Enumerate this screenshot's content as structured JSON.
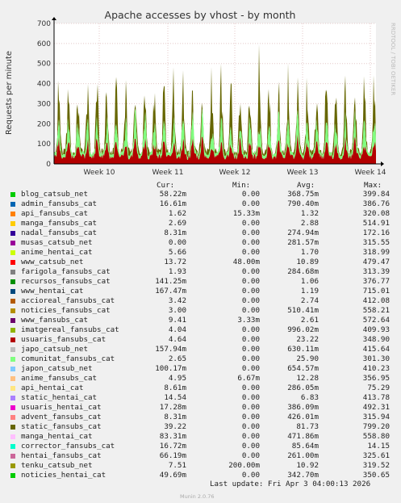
{
  "chart_data": {
    "type": "area",
    "title": "Apache accesses by vhost - by month",
    "ylabel": "Requests per minute",
    "side_label": "RRDTOOL / TOBI OETIKER",
    "ylim": [
      0,
      700
    ],
    "yticks": [
      0,
      100,
      200,
      300,
      400,
      500,
      600,
      700
    ],
    "xticks": [
      "Week 10",
      "Week 11",
      "Week 12",
      "Week 13",
      "Week 14"
    ],
    "grid": true,
    "legend_headers": [
      "Cur:",
      "Min:",
      "Avg:",
      "Max:"
    ],
    "series": [
      {
        "name": "blog_catsub_net",
        "color": "#00cc00",
        "cur": "58.22m",
        "min": "0.00",
        "avg": "368.75m",
        "max": "399.84"
      },
      {
        "name": "admin_fansubs_cat",
        "color": "#0066b3",
        "cur": "16.61m",
        "min": "0.00",
        "avg": "790.40m",
        "max": "386.76"
      },
      {
        "name": "api_fansubs_cat",
        "color": "#ff8000",
        "cur": "1.62",
        "min": "15.33m",
        "avg": "1.32",
        "max": "320.08"
      },
      {
        "name": "manga_fansubs_cat",
        "color": "#ffcc00",
        "cur": "2.69",
        "min": "0.00",
        "avg": "2.88",
        "max": "514.91"
      },
      {
        "name": "nadal_fansubs_cat",
        "color": "#330099",
        "cur": "8.31m",
        "min": "0.00",
        "avg": "274.94m",
        "max": "172.16"
      },
      {
        "name": "musas_catsub_net",
        "color": "#990099",
        "cur": "0.00",
        "min": "0.00",
        "avg": "281.57m",
        "max": "315.55"
      },
      {
        "name": "anime_hentai_cat",
        "color": "#ccff00",
        "cur": "5.66",
        "min": "0.00",
        "avg": "1.70",
        "max": "318.99"
      },
      {
        "name": "www_catsub_net",
        "color": "#ff0000",
        "cur": "13.72",
        "min": "48.00m",
        "avg": "10.89",
        "max": "479.47"
      },
      {
        "name": "farigola_fansubs_cat",
        "color": "#808080",
        "cur": "1.93",
        "min": "0.00",
        "avg": "284.68m",
        "max": "313.39"
      },
      {
        "name": "recursos_fansubs_cat",
        "color": "#008f00",
        "cur": "141.25m",
        "min": "0.00",
        "avg": "1.06",
        "max": "376.77"
      },
      {
        "name": "www_hentai_cat",
        "color": "#00487d",
        "cur": "167.47m",
        "min": "0.00",
        "avg": "1.19",
        "max": "715.01"
      },
      {
        "name": "accioreal_fansubs_cat",
        "color": "#b35a00",
        "cur": "3.42",
        "min": "0.00",
        "avg": "2.74",
        "max": "412.08"
      },
      {
        "name": "noticies_fansubs_cat",
        "color": "#b38f00",
        "cur": "3.00",
        "min": "0.00",
        "avg": "510.41m",
        "max": "558.21"
      },
      {
        "name": "www_fansubs_cat",
        "color": "#6b006b",
        "cur": "9.41",
        "min": "3.33m",
        "avg": "2.61",
        "max": "572.64"
      },
      {
        "name": "imatgereal_fansubs_cat",
        "color": "#8fb300",
        "cur": "4.04",
        "min": "0.00",
        "avg": "996.02m",
        "max": "409.93"
      },
      {
        "name": "usuaris_fansubs_cat",
        "color": "#b30000",
        "cur": "4.64",
        "min": "0.00",
        "avg": "23.22",
        "max": "348.90"
      },
      {
        "name": "japo_catsub_net",
        "color": "#bebebe",
        "cur": "157.94m",
        "min": "0.00",
        "avg": "630.11m",
        "max": "415.64"
      },
      {
        "name": "comunitat_fansubs_cat",
        "color": "#80ff80",
        "cur": "2.65",
        "min": "0.00",
        "avg": "25.90",
        "max": "301.30"
      },
      {
        "name": "japon_catsub_net",
        "color": "#80c9ff",
        "cur": "100.17m",
        "min": "0.00",
        "avg": "654.57m",
        "max": "410.23"
      },
      {
        "name": "anime_fansubs_cat",
        "color": "#ffc080",
        "cur": "4.95",
        "min": "6.67m",
        "avg": "12.28",
        "max": "356.95"
      },
      {
        "name": "api_hentai_cat",
        "color": "#ffe680",
        "cur": "8.61m",
        "min": "0.00",
        "avg": "286.05m",
        "max": "75.29"
      },
      {
        "name": "static_hentai_cat",
        "color": "#aa80ff",
        "cur": "14.54",
        "min": "0.00",
        "avg": "6.83",
        "max": "413.78"
      },
      {
        "name": "usuaris_hentai_cat",
        "color": "#ee00cc",
        "cur": "17.28m",
        "min": "0.00",
        "avg": "386.09m",
        "max": "492.31"
      },
      {
        "name": "advent_fansubs_cat",
        "color": "#ff8080",
        "cur": "8.31m",
        "min": "0.00",
        "avg": "426.01m",
        "max": "315.94"
      },
      {
        "name": "static_fansubs_cat",
        "color": "#666600",
        "cur": "39.22",
        "min": "0.00",
        "avg": "81.73",
        "max": "799.20"
      },
      {
        "name": "manga_hentai_cat",
        "color": "#ffbfff",
        "cur": "83.31m",
        "min": "0.00",
        "avg": "471.86m",
        "max": "558.80"
      },
      {
        "name": "corrector_fansubs_cat",
        "color": "#00ffcc",
        "cur": "16.72m",
        "min": "0.00",
        "avg": "85.64m",
        "max": "14.15"
      },
      {
        "name": "hentai_fansubs_cat",
        "color": "#cc6699",
        "cur": "66.19m",
        "min": "0.00",
        "avg": "261.00m",
        "max": "325.61"
      },
      {
        "name": "tenku_catsub_net",
        "color": "#999900",
        "cur": "7.51",
        "min": "200.00m",
        "avg": "10.92",
        "max": "319.52"
      },
      {
        "name": "noticies_hentai_cat",
        "color": "#00cc00",
        "cur": "49.69m",
        "min": "0.00",
        "avg": "342.70m",
        "max": "350.65"
      }
    ]
  },
  "footer": {
    "last_update": "Last update: Fri Apr  3 04:00:13 2026",
    "munin_version": "Munin 2.0.76"
  }
}
